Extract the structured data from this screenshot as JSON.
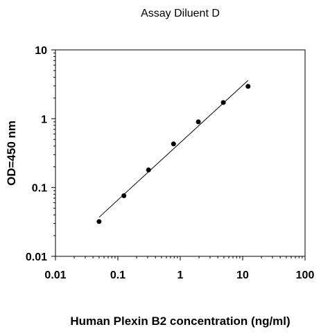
{
  "chart_data": {
    "type": "scatter",
    "title": "Assay Diluent D",
    "xlabel": "Human Plexin B2 concentration (ng/ml)",
    "ylabel": "OD=450 nm",
    "x_scale": "log",
    "y_scale": "log",
    "xlim": [
      0.01,
      100
    ],
    "ylim": [
      0.01,
      10
    ],
    "x_ticks": [
      0.01,
      0.1,
      1,
      10,
      100
    ],
    "x_tick_labels": [
      "0.01",
      "0.1",
      "1",
      "10",
      "100"
    ],
    "y_ticks": [
      0.01,
      0.1,
      1,
      10
    ],
    "y_tick_labels": [
      "0.01",
      "0.1",
      "1",
      "10"
    ],
    "grid": false,
    "legend": "none",
    "colors": {
      "points": "#000000",
      "fit_line": "#000000",
      "axes": "#000000"
    },
    "series": [
      {
        "points": [
          {
            "x": 0.05,
            "y": 0.032
          },
          {
            "x": 0.125,
            "y": 0.076
          },
          {
            "x": 0.31,
            "y": 0.18
          },
          {
            "x": 0.78,
            "y": 0.43
          },
          {
            "x": 1.95,
            "y": 0.9
          },
          {
            "x": 4.9,
            "y": 1.72
          },
          {
            "x": 12.2,
            "y": 2.95
          }
        ]
      }
    ],
    "fit_line": {
      "type": "linear-log-log",
      "from": {
        "x": 0.05,
        "y": 0.037
      },
      "to": {
        "x": 12.2,
        "y": 3.6
      }
    }
  }
}
